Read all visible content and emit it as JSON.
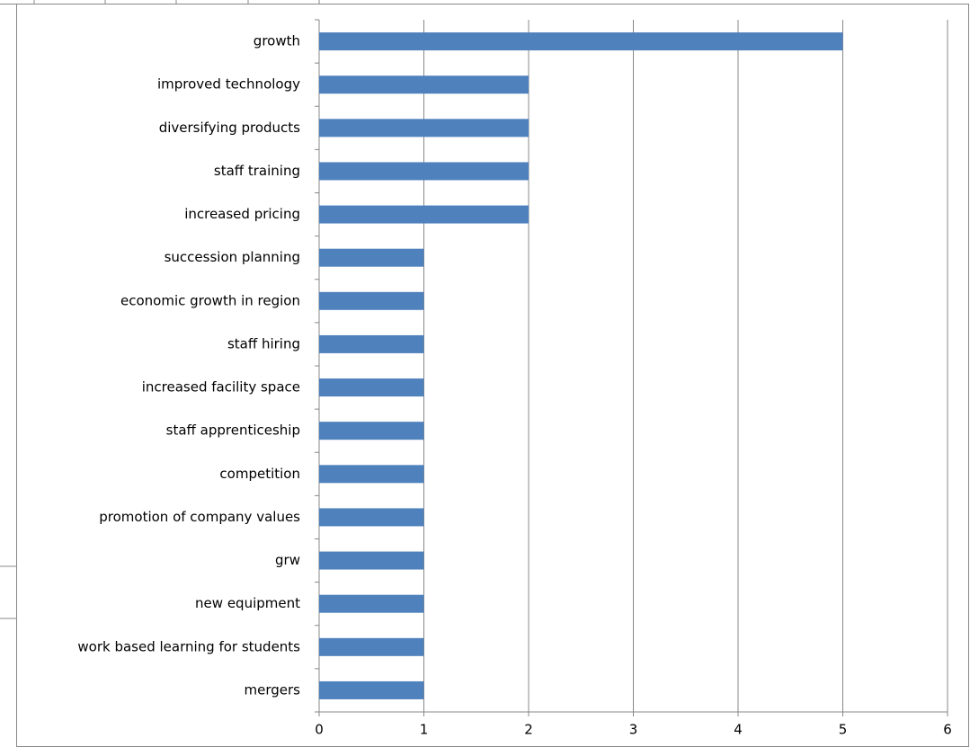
{
  "chart_data": {
    "type": "barh",
    "categories": [
      "growth",
      "improved technology",
      "diversifying products",
      "staff training",
      "increased pricing",
      "succession planning",
      "economic growth in region",
      "staff hiring",
      "increased facility space",
      "staff apprenticeship",
      "competition",
      "promotion of company values",
      "grw",
      "new equipment",
      "work based learning for students",
      "mergers"
    ],
    "values": [
      5,
      2,
      2,
      2,
      2,
      1,
      1,
      1,
      1,
      1,
      1,
      1,
      1,
      1,
      1,
      1
    ],
    "color": "#4f81bd",
    "xlim": [
      0,
      6
    ],
    "xticks": [
      0,
      1,
      2,
      3,
      4,
      5,
      6
    ],
    "grid": true
  }
}
